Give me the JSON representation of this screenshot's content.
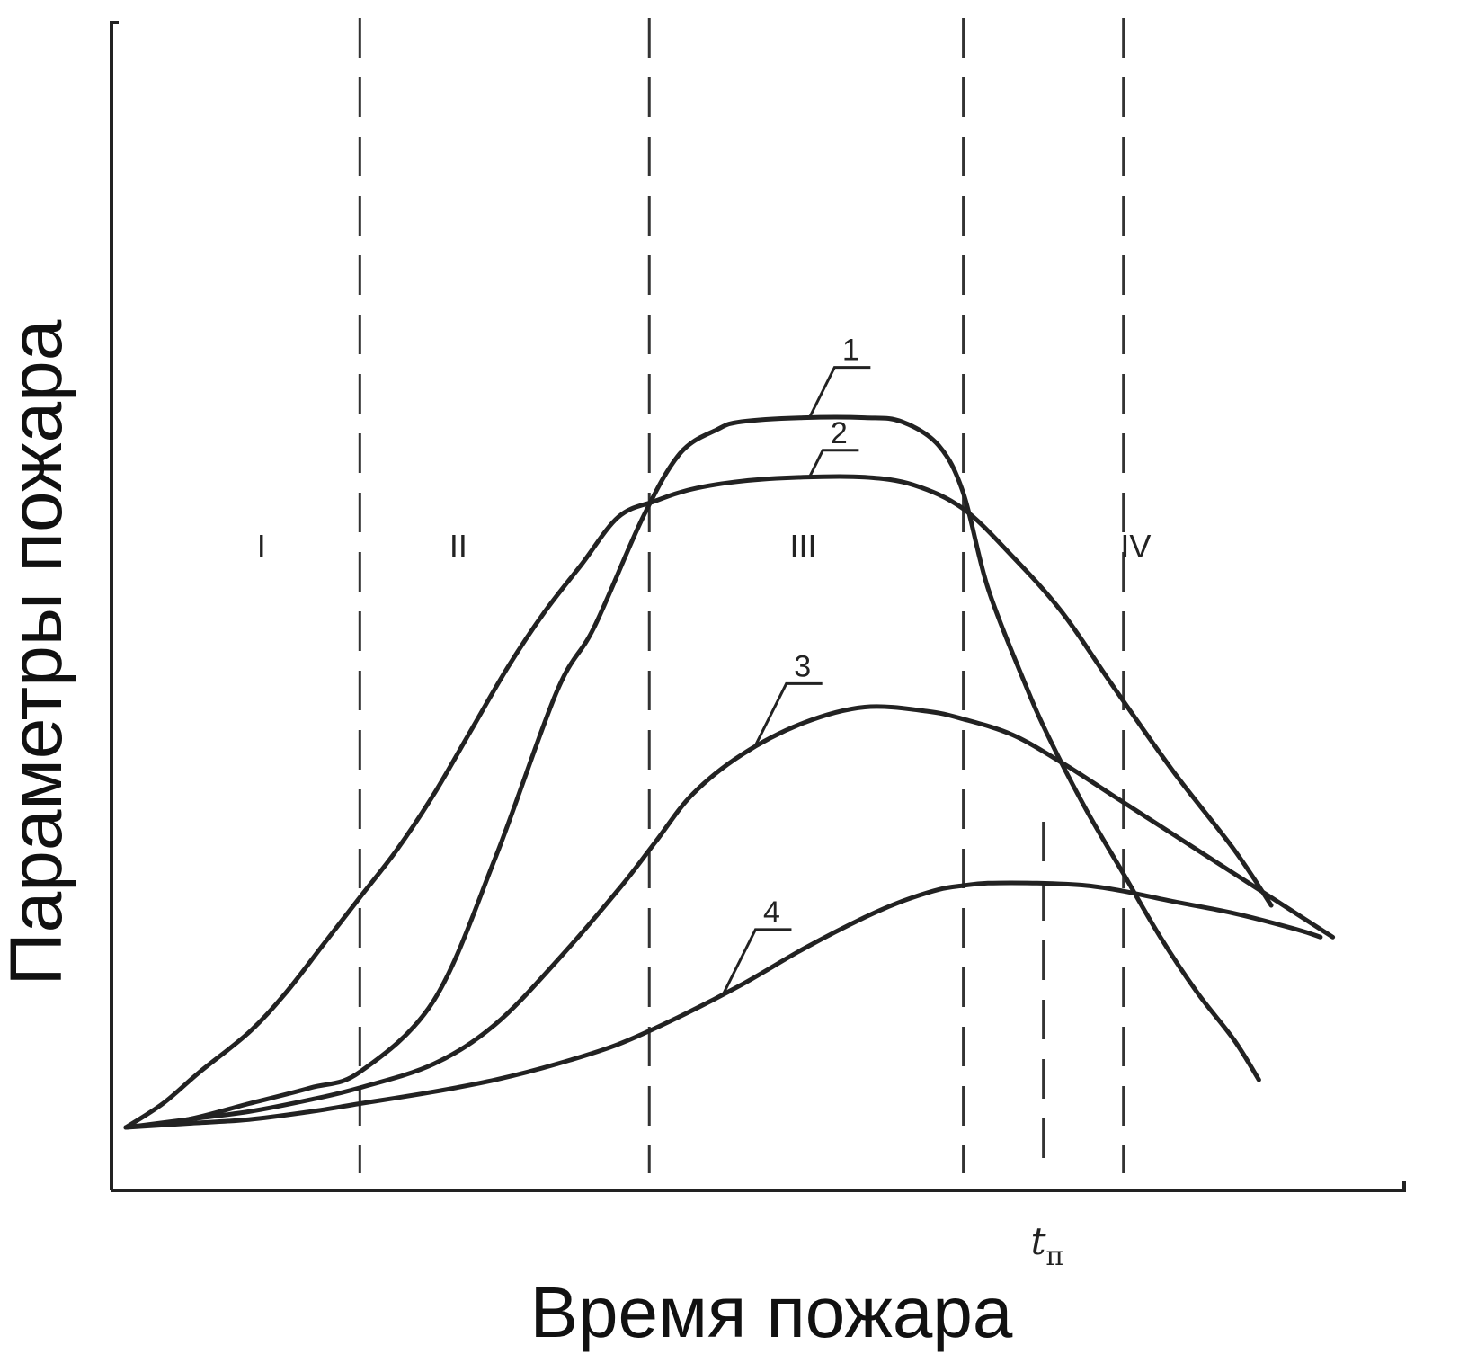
{
  "chart_data": {
    "type": "line",
    "title": "",
    "xlabel": "Время пожара",
    "ylabel": "Параметры пожара",
    "xlim": [
      0,
      100
    ],
    "ylim": [
      0,
      100
    ],
    "grid": false,
    "legend": "none",
    "stage_boundaries": [
      19,
      42.5,
      68,
      81
    ],
    "stages": [
      {
        "label": "I",
        "x": 11
      },
      {
        "label": "II",
        "x": 27
      },
      {
        "label": "III",
        "x": 55
      },
      {
        "label": "IV",
        "x": 82
      }
    ],
    "x_ticks": [
      {
        "label": "t",
        "subscript": "п",
        "x": 74.5
      }
    ],
    "series": [
      {
        "name": "1",
        "color": "#222222",
        "x": [
          0,
          5,
          10,
          15,
          19,
          25,
          30,
          35,
          38,
          42,
          45,
          48,
          50,
          55,
          60,
          63,
          66,
          68,
          70,
          73,
          75,
          78,
          81,
          84,
          87,
          90,
          92
        ],
        "y": [
          0,
          1,
          3,
          5,
          7,
          16,
          34,
          55,
          63,
          77,
          85,
          88,
          89,
          89.5,
          89.5,
          89,
          86,
          80,
          68,
          56,
          49,
          40,
          32,
          24,
          17,
          11,
          6
        ]
      },
      {
        "name": "2",
        "color": "#222222",
        "x": [
          0,
          3,
          6,
          10,
          13,
          16,
          19,
          22,
          25,
          28,
          31,
          34,
          37,
          40,
          43,
          46,
          50,
          55,
          60,
          64,
          68,
          72,
          76,
          80,
          85,
          90,
          93
        ],
        "y": [
          0,
          3,
          7,
          12,
          17,
          23,
          29,
          35,
          42,
          50,
          58,
          65,
          71,
          77,
          79,
          80.5,
          81.5,
          82,
          82,
          81,
          78,
          72,
          65,
          56,
          45,
          35,
          28
        ]
      },
      {
        "name": "3",
        "color": "#222222",
        "x": [
          0,
          5,
          10,
          15,
          19,
          25,
          30,
          35,
          40,
          43,
          46,
          50,
          55,
          60,
          65,
          68,
          72,
          76,
          80,
          85,
          90,
          95,
          98
        ],
        "y": [
          0,
          1,
          2,
          3.5,
          5,
          8,
          13,
          21,
          30,
          36,
          42,
          47,
          51,
          53,
          52.5,
          51.5,
          49.5,
          46,
          42,
          37,
          32,
          27,
          24
        ]
      },
      {
        "name": "4",
        "color": "#222222",
        "x": [
          0,
          5,
          10,
          15,
          19,
          25,
          30,
          35,
          40,
          45,
          50,
          55,
          60,
          63,
          66,
          68,
          70,
          74,
          78,
          81,
          85,
          90,
          95,
          97
        ],
        "y": [
          0,
          0.5,
          1,
          2,
          3,
          4.5,
          6,
          8,
          10.5,
          14,
          18,
          22.5,
          26.5,
          28.5,
          30,
          30.5,
          30.8,
          30.8,
          30.5,
          29.8,
          28.5,
          27,
          25,
          24
        ]
      }
    ]
  }
}
